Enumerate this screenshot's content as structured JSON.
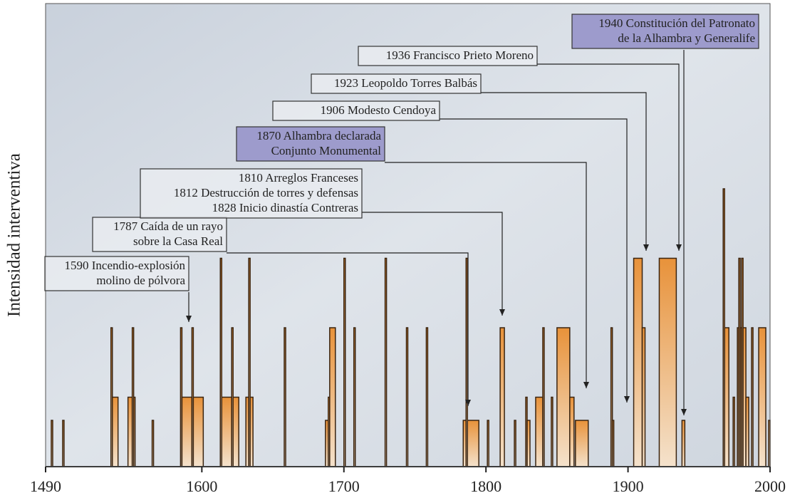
{
  "chart_data": {
    "type": "step-area",
    "y_label": "Intensidad interventiva",
    "xlim": [
      1490,
      2000
    ],
    "ylim": [
      0,
      10
    ],
    "xticks": [
      1490,
      1600,
      1700,
      1800,
      1900,
      2000
    ],
    "color": "#e8923a",
    "x": [
      1490,
      1494,
      1495,
      1502,
      1503,
      1536,
      1537,
      1541,
      1548,
      1551,
      1552,
      1553,
      1565,
      1566,
      1585,
      1586,
      1593,
      1594,
      1601,
      1613,
      1614,
      1621,
      1622,
      1626,
      1631,
      1633,
      1634,
      1636,
      1658,
      1659,
      1687,
      1689,
      1690,
      1694,
      1700,
      1701,
      1707,
      1708,
      1729,
      1730,
      1744,
      1745,
      1758,
      1759,
      1784,
      1786,
      1787,
      1795,
      1801,
      1802,
      1810,
      1813,
      1820,
      1821,
      1828,
      1829,
      1831,
      1835,
      1840,
      1841,
      1846,
      1847,
      1850,
      1859,
      1862,
      1863,
      1872,
      1888,
      1889,
      1890,
      1904,
      1910,
      1912,
      1922,
      1934,
      1938,
      1940,
      1967,
      1968,
      1971,
      1974,
      1975,
      1977,
      1978,
      1979,
      1980,
      1981,
      1983,
      1985,
      1987,
      1988,
      1992,
      1997,
      1999
    ],
    "values": [
      0,
      1,
      0,
      1,
      0,
      3,
      1.5,
      0,
      1.5,
      3,
      1.5,
      0,
      1,
      0,
      3,
      1.5,
      3,
      1.5,
      0,
      4.5,
      1.5,
      3,
      1.5,
      0,
      1.5,
      4.5,
      1.5,
      0,
      3,
      0,
      1,
      1.5,
      3,
      0,
      4.5,
      0,
      3,
      0,
      4.5,
      0,
      3,
      0,
      3,
      0,
      1,
      4.5,
      1,
      0,
      1,
      0,
      3,
      0,
      1,
      0,
      1.5,
      1,
      0,
      1.5,
      3,
      0,
      1.5,
      0,
      3,
      1.5,
      0,
      1,
      0,
      3,
      1,
      0,
      4.5,
      3,
      0,
      4.5,
      0,
      1,
      0,
      6,
      3,
      0,
      1.5,
      0,
      3,
      4.5,
      3,
      4.5,
      3,
      1.5,
      0,
      3,
      0,
      3,
      0,
      1
    ],
    "annotations": [
      {
        "lines": [
          "1590 Incendio-explosión",
          "molino de pólvora"
        ]
      },
      {
        "lines": [
          "1787 Caída de un rayo",
          "sobre la Casa Real"
        ]
      },
      {
        "lines": [
          "1810 Arreglos Franceses",
          "1812 Destrucción de torres y defensas",
          "1828 Inicio dinastía Contreras"
        ]
      },
      {
        "lines": [
          "1870 Alhambra declarada",
          "Conjunto Monumental"
        ],
        "color": "#9d9bcc"
      },
      {
        "lines": [
          "1906 Modesto Cendoya"
        ]
      },
      {
        "lines": [
          "1923 Leopoldo Torres Balbás"
        ]
      },
      {
        "lines": [
          "1936 Francisco Prieto Moreno"
        ]
      },
      {
        "lines": [
          "1940 Constitución del Patronato",
          "de la Alhambra y Generalife"
        ],
        "color": "#9d9bcc"
      }
    ]
  }
}
